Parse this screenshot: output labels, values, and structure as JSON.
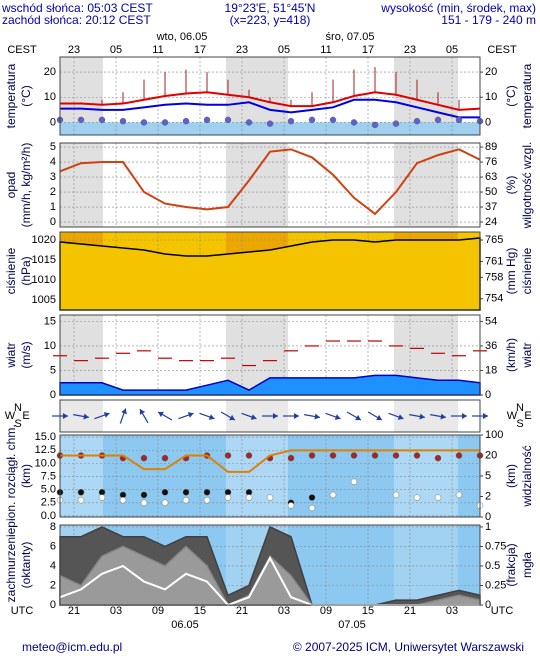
{
  "header": {
    "sunrise": "wschód słońca: 05:03 CEST",
    "sunset": "zachód słońca: 20:12 CEST",
    "coords": "19°23'E, 51°45'N",
    "grid_point": "(x=223, y=418)",
    "elevation_title": "wysokość (min, środek, max)",
    "elevation": "151 - 179 - 240 m"
  },
  "time_axis": {
    "top_zone": "CEST",
    "top_hours": [
      "23",
      "05",
      "11",
      "17",
      "23",
      "05",
      "11",
      "17",
      "23",
      "05"
    ],
    "top_days": [
      "wto, 06.05",
      "śro, 07.05"
    ],
    "bottom_zone": "UTC",
    "bottom_hours": [
      "21",
      "03",
      "09",
      "15",
      "21",
      "03",
      "09",
      "15",
      "21",
      "03"
    ],
    "bottom_days": [
      "06.05",
      "07.05"
    ]
  },
  "footer": {
    "email": "meteo@icm.edu.pl",
    "copyright": "© 2007-2025 ICM, Uniwersytet Warszawski"
  },
  "chart_data": [
    {
      "type": "line",
      "ylabel": [
        "temperatura",
        "(°C)"
      ],
      "y2label": [
        "(°C)",
        "temperatura"
      ],
      "ylim": [
        -5,
        26
      ],
      "yticks": [
        0,
        10,
        20
      ],
      "y2lim": [
        -5,
        26
      ],
      "y2ticks": [
        0,
        10,
        20
      ],
      "grid": true,
      "series": [
        {
          "kind": "spikes",
          "base": 1,
          "color": "#a02020",
          "values": [
            9,
            8,
            9,
            12,
            17,
            20,
            21,
            20,
            17,
            13,
            10,
            9,
            12,
            17,
            21,
            22,
            20,
            17,
            12,
            9,
            8
          ]
        },
        {
          "kind": "line",
          "color": "#e00000",
          "values": [
            7.5,
            7.5,
            7,
            7.5,
            9,
            10.5,
            11.5,
            12,
            11,
            10,
            8,
            6.5,
            6.5,
            8,
            10.5,
            12,
            11,
            9,
            7,
            5,
            5.5
          ]
        },
        {
          "kind": "line",
          "color": "#0000e0",
          "values": [
            5.5,
            5.5,
            5,
            5,
            6,
            7,
            7.5,
            7,
            7,
            8,
            5,
            4,
            5,
            6,
            9,
            9,
            8,
            6,
            4,
            2,
            2
          ]
        },
        {
          "kind": "dots",
          "color": "#6060d0",
          "values": [
            1,
            1,
            1,
            0.5,
            0,
            0,
            0.5,
            1,
            1,
            0,
            -0.5,
            0.5,
            1,
            1,
            0,
            -1,
            -0.5,
            0.5,
            1,
            1,
            0.5
          ]
        }
      ]
    },
    {
      "type": "line",
      "ylabel": [
        "opad",
        "(mm/h, kg/m²/h)"
      ],
      "y2label": [
        "(%)",
        "wilgotność wzgl."
      ],
      "ylim": [
        -0.33,
        5.27
      ],
      "yticks": [
        0,
        1,
        2,
        3,
        4,
        5
      ],
      "y2lim": [
        19.7,
        92.5
      ],
      "y2ticks": [
        24,
        37,
        50,
        63,
        76,
        89
      ],
      "grid": true,
      "series": [
        {
          "kind": "line",
          "axis": "y2",
          "color": "#d04010",
          "values": [
            68,
            75,
            76,
            76,
            50,
            40,
            37,
            35,
            37,
            60,
            85,
            87,
            80,
            65,
            45,
            31,
            50,
            75,
            82,
            87,
            78
          ]
        }
      ]
    },
    {
      "type": "line",
      "ylabel": [
        "ciśnienie",
        "(hPa)"
      ],
      "y2label": [
        "(mm Hg)",
        "ciśnienie"
      ],
      "ylim": [
        1002.5,
        1022
      ],
      "yticks": [
        1005,
        1010,
        1015,
        1020
      ],
      "y2lim": [
        751.9,
        766.5
      ],
      "y2ticks": [
        754,
        758,
        761,
        765
      ],
      "grid": true,
      "series": [
        {
          "kind": "filled",
          "color": "#000000",
          "fill": "#f4c400",
          "values": [
            1019.5,
            1019,
            1018.5,
            1018,
            1017.5,
            1016.5,
            1016,
            1016,
            1016.5,
            1017,
            1017.5,
            1018.5,
            1019.5,
            1020,
            1020,
            1019.5,
            1020,
            1020,
            1020,
            1020,
            1020.5
          ]
        }
      ]
    },
    {
      "type": "line",
      "ylabel": [
        "wiatr",
        "(m/s)"
      ],
      "y2label": [
        "(km/h)",
        "wiatr"
      ],
      "ylim": [
        0,
        16.3
      ],
      "yticks": [
        0,
        5,
        10,
        15
      ],
      "y2lim": [
        0,
        58.7
      ],
      "y2ticks": [
        0,
        18,
        36,
        54
      ],
      "grid": true,
      "series": [
        {
          "kind": "filled",
          "color": "#0000c0",
          "fill": "#1e90ff",
          "values": [
            2.5,
            2.5,
            2.5,
            1,
            1,
            1,
            1,
            2,
            3,
            1,
            3.5,
            3.5,
            3.5,
            3.5,
            3.5,
            4,
            4,
            3.5,
            3,
            3,
            2.5
          ]
        },
        {
          "kind": "dash",
          "color": "#c00000",
          "values": [
            8,
            7,
            7.5,
            8.5,
            9,
            7.5,
            7,
            7,
            7.5,
            6,
            7,
            9,
            10,
            11,
            11,
            11,
            10,
            9.5,
            8.5,
            8,
            9
          ]
        }
      ]
    },
    {
      "type": "arrows",
      "compass": [
        "N",
        "W",
        "E",
        "S"
      ],
      "color": "#2040a0",
      "values": [
        270,
        280,
        250,
        200,
        150,
        120,
        250,
        290,
        300,
        290,
        270,
        270,
        280,
        290,
        300,
        300,
        290,
        280,
        280,
        270,
        270
      ]
    },
    {
      "type": "line",
      "ylabel": [
        "pion. rozciągł. chm.",
        "(km)"
      ],
      "y2label": [
        "(km)",
        "widzialność"
      ],
      "ylim": [
        -0.2,
        15.4
      ],
      "yticks": [
        {
          "value": 0,
          "label": "0.0"
        },
        {
          "value": 2.5,
          "label": "2.5"
        },
        {
          "value": 5,
          "label": "5.0"
        },
        {
          "value": 7.5,
          "label": "7.5"
        },
        {
          "value": 10,
          "label": "10.0"
        },
        {
          "value": 12.5,
          "label": "12.5"
        },
        {
          "value": 15,
          "label": "15.0"
        }
      ],
      "y2lim": [
        0,
        100
      ],
      "y2ticks": [
        0,
        2,
        5,
        20,
        100
      ],
      "y2scale": "piecewise",
      "grid": true,
      "series": [
        {
          "kind": "dots",
          "color": "#a02828",
          "values": [
            11.5,
            11.5,
            11.5,
            11,
            11,
            11,
            11,
            11.5,
            11.5,
            11.5,
            11,
            11,
            11.5,
            11.5,
            11.5,
            11.5,
            11.5,
            11.5,
            11,
            11.5,
            11.5
          ]
        },
        {
          "kind": "dots",
          "color": "#101010",
          "values": [
            4.5,
            4.5,
            4.5,
            4,
            4,
            4.5,
            4.5,
            4.5,
            4.5,
            4.5,
            null,
            2.5,
            3.5,
            null,
            null,
            null,
            null,
            null,
            null,
            null,
            null
          ]
        },
        {
          "kind": "dots",
          "color": "#ffffff",
          "values": [
            3,
            3,
            3.5,
            3,
            2.5,
            2.5,
            3,
            3,
            3.5,
            3.5,
            3.5,
            2,
            1.5,
            4,
            6.5,
            null,
            4,
            3.5,
            3.5,
            4,
            2
          ]
        },
        {
          "kind": "line",
          "axis": "y2",
          "color": "#e08000",
          "values": [
            20,
            20,
            20,
            20,
            10,
            10,
            20,
            20,
            8,
            8,
            20,
            40,
            40,
            40,
            40,
            40,
            40,
            40,
            40,
            40,
            40
          ]
        }
      ]
    },
    {
      "type": "line",
      "ylabel": [
        "zachmurzenie",
        "(oktanty)"
      ],
      "y2label": [
        "(frakcja)",
        "mgła"
      ],
      "ylim": [
        0,
        8.2
      ],
      "yticks": [
        0,
        2,
        4,
        6,
        8
      ],
      "y2lim": [
        0,
        1.025
      ],
      "y2ticks": [
        0,
        0.25,
        0.5,
        0.75,
        1
      ],
      "grid": true,
      "series": [
        {
          "kind": "filled",
          "color": "#404040",
          "fill": "#555555",
          "values": [
            7,
            7,
            8,
            7,
            7,
            6,
            7,
            7,
            1,
            2,
            8,
            7,
            0,
            0,
            0,
            0,
            0.5,
            0.5,
            1,
            1.5,
            1
          ]
        },
        {
          "kind": "filled",
          "color": "#888888",
          "fill": "#9a9a9a",
          "values": [
            3,
            2,
            5,
            6,
            5,
            4,
            6,
            4,
            0,
            1,
            5,
            3,
            0,
            0,
            0,
            0,
            0,
            0,
            0.5,
            1,
            0.5
          ]
        },
        {
          "kind": "line",
          "axis": "y2",
          "color": "#ffffff",
          "values": [
            0.1,
            0.2,
            0.4,
            0.5,
            0.3,
            0.2,
            0.4,
            0.3,
            0,
            0.1,
            0.6,
            0.1,
            0,
            0,
            0,
            0,
            0,
            0,
            0,
            0,
            0
          ]
        }
      ]
    }
  ]
}
